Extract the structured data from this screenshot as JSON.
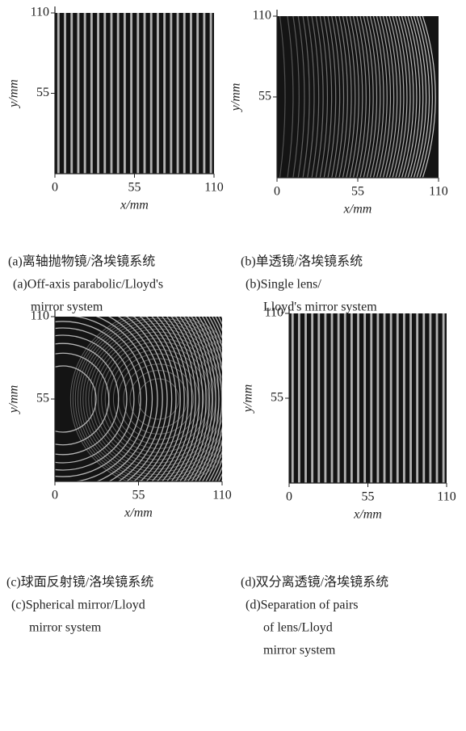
{
  "panels": [
    {
      "xlabel": "x/mm",
      "ylabel": "y/mm",
      "xlim": [
        0,
        110
      ],
      "ylim": [
        0,
        110
      ],
      "xticks": [
        0,
        55,
        110
      ],
      "yticks": [
        55,
        110
      ],
      "caption_cn": "(a)离轴抛物镜/洛埃镜系统",
      "caption_en": [
        "(a)Off-axis parabolic/Lloyd's",
        "mirror system"
      ]
    },
    {
      "xlabel": "x/mm",
      "ylabel": "y/mm",
      "xlim": [
        0,
        110
      ],
      "ylim": [
        0,
        110
      ],
      "xticks": [
        0,
        55,
        110
      ],
      "yticks": [
        55,
        110
      ],
      "caption_cn": "(b)单透镜/洛埃镜系统",
      "caption_en": [
        "(b)Single lens/",
        "Lloyd's mirror system"
      ]
    },
    {
      "xlabel": "x/mm",
      "ylabel": "y/mm",
      "xlim": [
        0,
        110
      ],
      "ylim": [
        0,
        110
      ],
      "xticks": [
        0,
        55,
        110
      ],
      "yticks": [
        55,
        110
      ],
      "caption_cn": "(c)球面反射镜/洛埃镜系统",
      "caption_en": [
        "(c)Spherical mirror/Lloyd",
        "mirror system"
      ]
    },
    {
      "xlabel": "x/mm",
      "ylabel": "y/mm",
      "xlim": [
        0,
        110
      ],
      "ylim": [
        0,
        110
      ],
      "xticks": [
        0,
        55,
        110
      ],
      "yticks": [
        55,
        110
      ],
      "caption_cn": "(d)双分离透镜/洛埃镜系统",
      "caption_en": [
        "(d)Separation of pairs",
        "of lens/Lloyd",
        "mirror system"
      ]
    }
  ]
}
